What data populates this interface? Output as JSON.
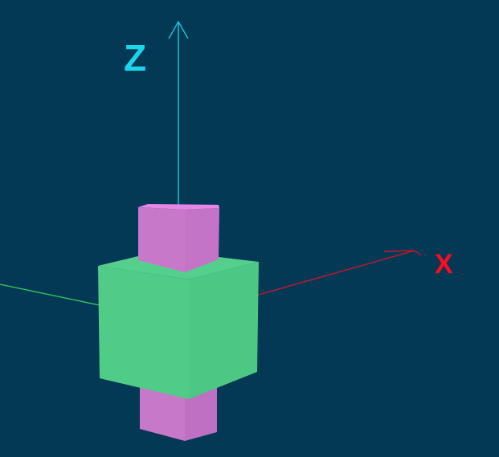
{
  "scene": {
    "background_color": "#043956",
    "axes": {
      "z": {
        "label": "Z",
        "color": "#19d6e8"
      },
      "x": {
        "label": "X",
        "color": "#ff0a1e"
      },
      "y": {
        "label": "",
        "color": "#35d05a"
      }
    },
    "objects": [
      {
        "name": "green-cube",
        "color": "#50cc88"
      },
      {
        "name": "pink-box-top",
        "color": "#c878c8"
      },
      {
        "name": "pink-box-bottom",
        "color": "#c878c8"
      }
    ]
  }
}
